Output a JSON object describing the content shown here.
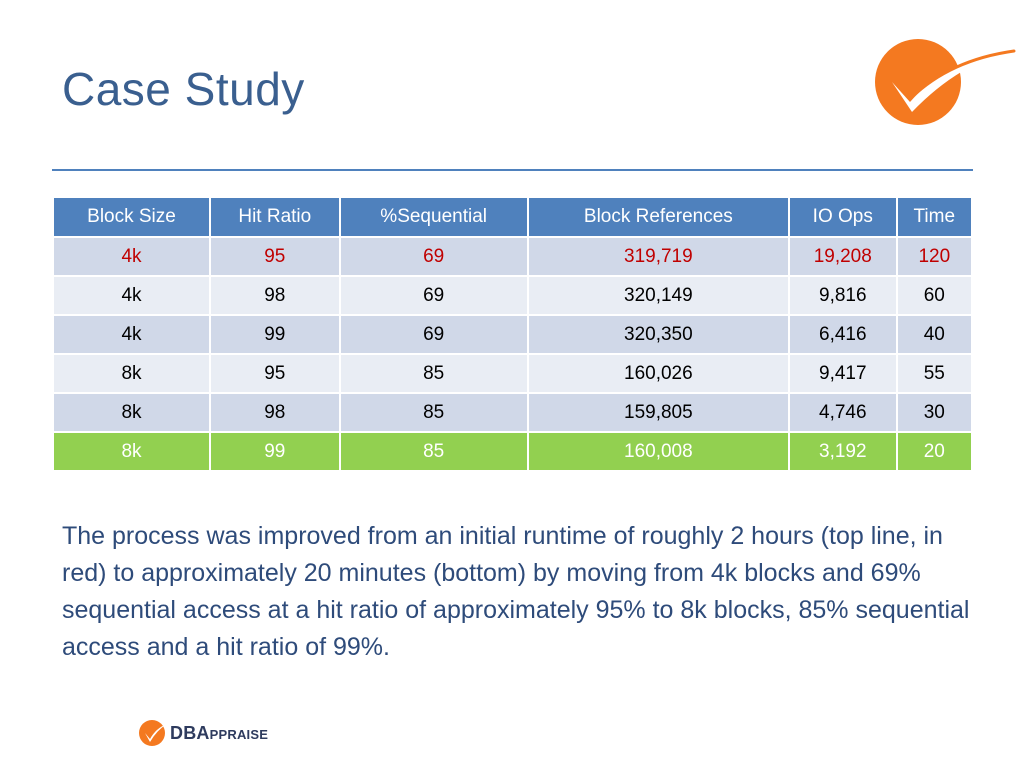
{
  "title": "Case Study",
  "table": {
    "headers": [
      "Block Size",
      "Hit Ratio",
      "%Sequential",
      "Block References",
      "IO Ops",
      "Time"
    ],
    "rows": [
      [
        "4k",
        "95",
        "69",
        "319,719",
        "19,208",
        "120"
      ],
      [
        "4k",
        "98",
        "69",
        "320,149",
        "9,816",
        "60"
      ],
      [
        "4k",
        "99",
        "69",
        "320,350",
        "6,416",
        "40"
      ],
      [
        "8k",
        "95",
        "85",
        "160,026",
        "9,417",
        "55"
      ],
      [
        "8k",
        "98",
        "85",
        "159,805",
        "4,746",
        "30"
      ],
      [
        "8k",
        "99",
        "85",
        "160,008",
        "3,192",
        "20"
      ]
    ]
  },
  "caption": "The process was improved from an initial runtime of roughly 2 hours (top line, in red) to approximately 20 minutes (bottom) by moving from 4k blocks and 69% sequential access at a hit ratio of approximately 95% to 8k blocks, 85% sequential access and a hit ratio of 99%.",
  "footer": {
    "brand_main": "DBA",
    "brand_rest": "PPRAISE",
    "brand_cap": "A"
  },
  "colors": {
    "title": "#3a5f8f",
    "header_bg": "#4f81bd",
    "row_odd": "#d0d8e8",
    "row_even": "#e9edf4",
    "highlight_red": "#c00000",
    "highlight_green": "#92d050",
    "logo_orange": "#f47920"
  },
  "icons": {
    "top_logo": "orange-checkmark-circle-icon",
    "footer_logo": "dbappraise-logo-icon"
  }
}
